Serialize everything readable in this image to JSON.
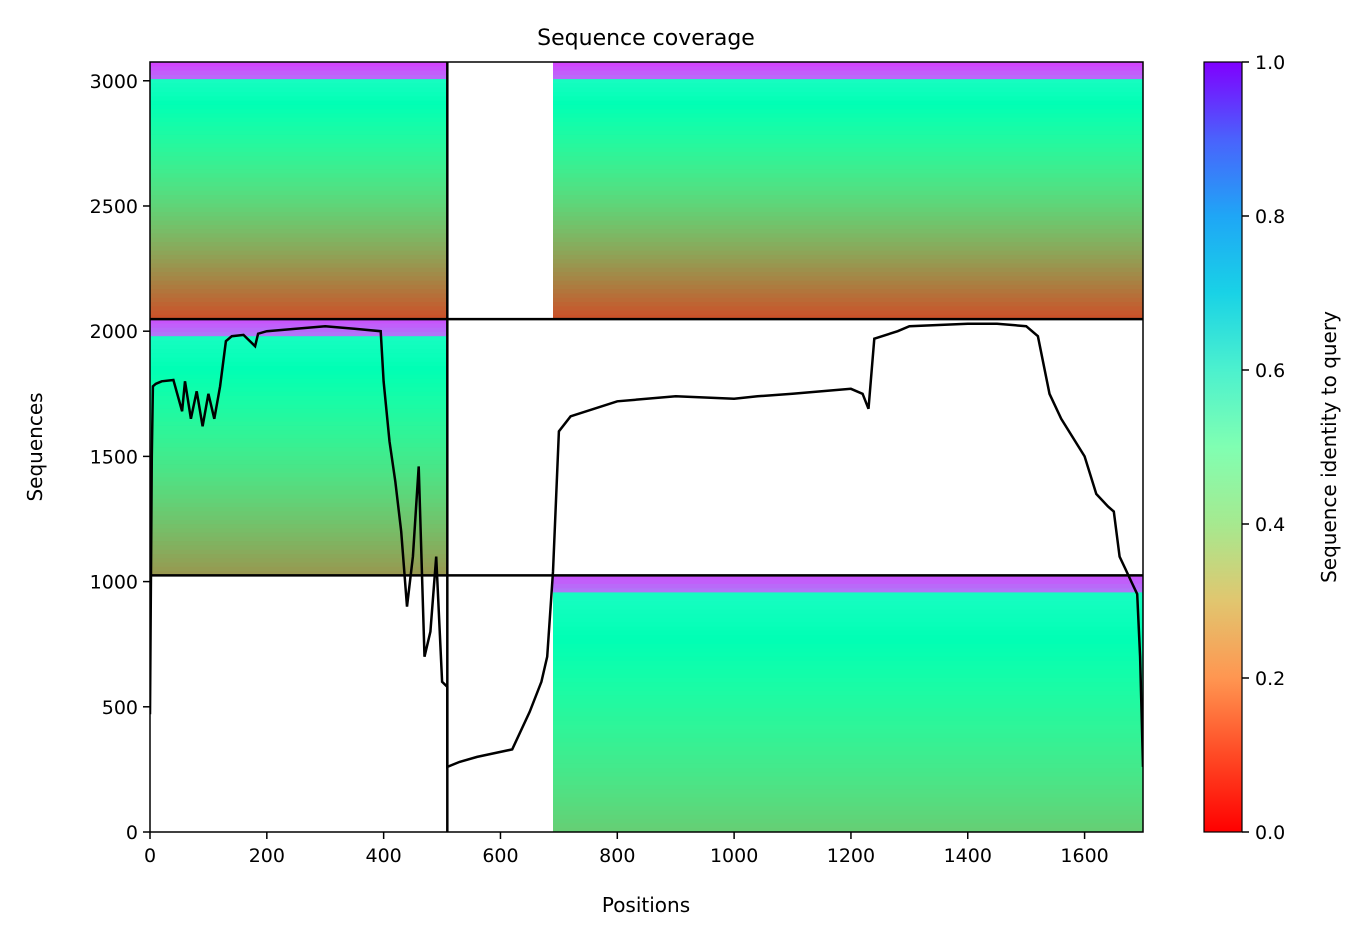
{
  "chart_data": {
    "type": "heatmap",
    "title": "Sequence coverage",
    "xlabel": "Positions",
    "ylabel": "Sequences",
    "xlim": [
      0,
      1700
    ],
    "ylim": [
      0,
      3075
    ],
    "x_ticks": [
      0,
      200,
      400,
      600,
      800,
      1000,
      1200,
      1400,
      1600
    ],
    "y_ticks": [
      0,
      500,
      1000,
      1500,
      2000,
      2500,
      3000
    ],
    "colorbar": {
      "label": "Sequence identity to query",
      "range": [
        0,
        1
      ],
      "ticks": [
        "0.0",
        "0.2",
        "0.4",
        "0.6",
        "0.8",
        "1.0"
      ],
      "colormap": "rainbow_r"
    },
    "segment_boundaries_x": [
      509
    ],
    "segment_boundaries_y": [
      1025,
      2048
    ],
    "blocks": [
      {
        "x": [
          0,
          509
        ],
        "y": [
          2048,
          3075
        ],
        "coverage_x": [
          0,
          509
        ],
        "identity_top": 0.92,
        "identity_bottom": 0.1
      },
      {
        "x": [
          509,
          1700
        ],
        "y": [
          2048,
          3075
        ],
        "coverage_x": [
          690,
          1700
        ],
        "identity_top": 0.92,
        "identity_bottom": 0.1
      },
      {
        "x": [
          0,
          509
        ],
        "y": [
          1025,
          2048
        ],
        "coverage_x": [
          0,
          509
        ],
        "identity_top": 0.9,
        "identity_bottom": 0.2
      },
      {
        "x": [
          509,
          1700
        ],
        "y": [
          0,
          1025
        ],
        "coverage_x": [
          690,
          1700
        ],
        "identity_top": 0.9,
        "identity_bottom": 0.3
      }
    ],
    "coverage_line": {
      "name": "coverage",
      "color": "#000000",
      "x": [
        0,
        3,
        5,
        10,
        20,
        40,
        55,
        60,
        70,
        80,
        90,
        100,
        110,
        120,
        130,
        140,
        160,
        180,
        185,
        200,
        250,
        300,
        350,
        395,
        400,
        410,
        420,
        430,
        440,
        450,
        460,
        470,
        480,
        490,
        500,
        509,
        509,
        530,
        560,
        600,
        620,
        650,
        670,
        680,
        690,
        700,
        720,
        800,
        900,
        1000,
        1040,
        1100,
        1150,
        1200,
        1220,
        1230,
        1240,
        1280,
        1300,
        1400,
        1450,
        1500,
        1520,
        1540,
        1560,
        1600,
        1620,
        1640,
        1650,
        1660,
        1670,
        1680,
        1690,
        1695,
        1700
      ],
      "y": [
        470,
        1500,
        1780,
        1790,
        1800,
        1805,
        1680,
        1800,
        1650,
        1760,
        1620,
        1750,
        1650,
        1780,
        1960,
        1980,
        1985,
        1940,
        1990,
        2000,
        2010,
        2020,
        2010,
        2000,
        1800,
        1560,
        1400,
        1200,
        900,
        1100,
        1460,
        700,
        800,
        1100,
        600,
        580,
        260,
        280,
        300,
        320,
        330,
        480,
        600,
        700,
        1040,
        1600,
        1660,
        1720,
        1740,
        1730,
        1740,
        1750,
        1760,
        1770,
        1750,
        1690,
        1970,
        2000,
        2020,
        2030,
        2030,
        2020,
        1980,
        1750,
        1650,
        1500,
        1350,
        1300,
        1280,
        1100,
        1050,
        1000,
        950,
        700,
        260
      ]
    }
  }
}
